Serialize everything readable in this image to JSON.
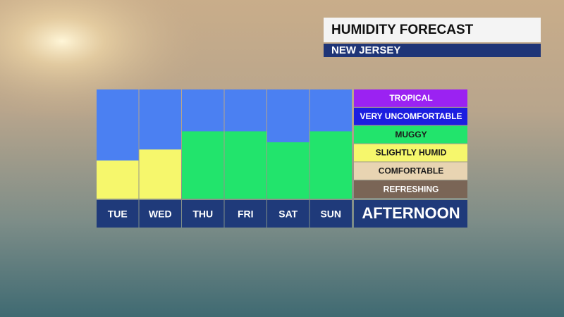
{
  "chart_data": {
    "type": "bar",
    "title": "HUMIDITY FORECAST",
    "subtitle": "NEW JERSEY",
    "x_label": "AFTERNOON",
    "categories": [
      "TUE",
      "WED",
      "THU",
      "FRI",
      "SAT",
      "SUN"
    ],
    "values": [
      2.1,
      2.7,
      3.7,
      3.7,
      3.1,
      3.7
    ],
    "ylim": [
      0,
      6
    ],
    "empty_color": "#4b80f2",
    "levels": [
      {
        "name": "TROPICAL",
        "color": "#9b22f2",
        "text_color": "#ffffff"
      },
      {
        "name": "VERY UNCOMFORTABLE",
        "color": "#1c1ee0",
        "text_color": "#ffffff"
      },
      {
        "name": "MUGGY",
        "color": "#22e46c",
        "text_color": "#1a1a1a"
      },
      {
        "name": "SLIGHTLY HUMID",
        "color": "#f6f76c",
        "text_color": "#1a1a1a"
      },
      {
        "name": "COMFORTABLE",
        "color": "#e8d4b2",
        "text_color": "#1a1a1a"
      },
      {
        "name": "REFRESHING",
        "color": "#7a6556",
        "text_color": "#ffffff"
      }
    ]
  }
}
